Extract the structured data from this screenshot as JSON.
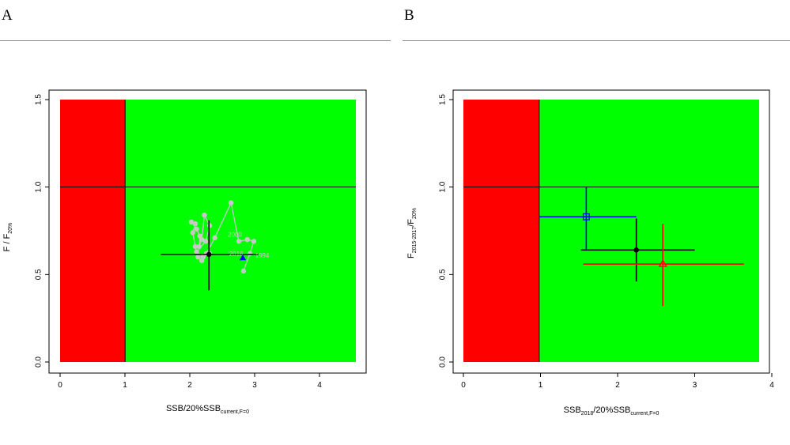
{
  "panels": {
    "a": {
      "label": "A"
    },
    "b": {
      "label": "B"
    }
  },
  "chart_data": [
    {
      "panel": "A",
      "type": "scatter",
      "xlim": [
        0,
        4.55
      ],
      "ylim": [
        0,
        1.5
      ],
      "xticks": [
        "0",
        "1",
        "2",
        "3",
        "4"
      ],
      "yticks": [
        "0.0",
        "0.5",
        "1.0",
        "1.5"
      ],
      "xlabel": {
        "main": "SSB",
        "sep": "/",
        "main2": "20%SSB",
        "sub": "current,F=0"
      },
      "ylabel": {
        "main": "F",
        "sep": "/",
        "main2": "F",
        "sub": "20%"
      },
      "zones": [
        {
          "x0": 0,
          "x1": 1,
          "color": "#ff0000"
        },
        {
          "x0": 1,
          "x1": 4.55,
          "color": "#00ff00"
        }
      ],
      "reference_lines": {
        "x": 1.0,
        "y": 1.0
      },
      "trajectory": {
        "color": "#c8c8c8",
        "points": [
          [
            2.82,
            0.52
          ],
          [
            2.92,
            0.62
          ],
          [
            2.98,
            0.69
          ],
          [
            2.88,
            0.7
          ],
          [
            2.75,
            0.69
          ],
          [
            2.63,
            0.91
          ],
          [
            2.38,
            0.71
          ],
          [
            2.25,
            0.62
          ],
          [
            2.18,
            0.58
          ],
          [
            2.12,
            0.6
          ],
          [
            2.08,
            0.66
          ],
          [
            2.04,
            0.74
          ],
          [
            2.08,
            0.79
          ],
          [
            2.02,
            0.8
          ],
          [
            2.1,
            0.76
          ],
          [
            2.15,
            0.72
          ],
          [
            2.14,
            0.66
          ],
          [
            2.18,
            0.7
          ],
          [
            2.22,
            0.84
          ],
          [
            2.3,
            0.78
          ],
          [
            2.24,
            0.69
          ],
          [
            2.1,
            0.63
          ],
          [
            2.2,
            0.6
          ],
          [
            2.3,
            0.62
          ]
        ],
        "year_labels": [
          {
            "text": "2000",
            "x": 2.58,
            "y": 0.725
          },
          {
            "text": "2018",
            "x": 2.6,
            "y": 0.615
          },
          {
            "text": "1994",
            "x": 3.0,
            "y": 0.605
          }
        ]
      },
      "current": {
        "x": 2.29,
        "y": 0.615,
        "x_ci": [
          1.55,
          3.05
        ],
        "y_ci": [
          0.41,
          0.81
        ],
        "color": "#000000"
      },
      "start_marker": {
        "x": 2.81,
        "y": 0.595,
        "shape": "triangle",
        "color": "#0000ff"
      }
    },
    {
      "panel": "B",
      "type": "scatter",
      "xlim": [
        0,
        3.9
      ],
      "ylim": [
        0,
        1.5
      ],
      "xticks": [
        "0",
        "1",
        "2",
        "3",
        "4"
      ],
      "yticks": [
        "0.0",
        "0.5",
        "1.0",
        "1.5"
      ],
      "xlabel": {
        "main": "SSB",
        "sub1": "2018",
        "sep": "/",
        "main2": "20%SSB",
        "sub": "current,F=0"
      },
      "ylabel": {
        "main": "F",
        "sub1": "2015-2017",
        "sep": "/",
        "main2": "F",
        "sub": "20%"
      },
      "zones": [
        {
          "x0": 0,
          "x1": 1,
          "color": "#ff0000"
        },
        {
          "x0": 1,
          "x1": 3.9,
          "color": "#00ff00"
        }
      ],
      "reference_lines": {
        "x": 1.0,
        "y": 1.0
      },
      "series": [
        {
          "name": "black",
          "color": "#000000",
          "marker": "filled-circle",
          "x": 2.28,
          "y": 0.64,
          "x_ci": [
            1.55,
            3.05
          ],
          "y_ci": [
            0.46,
            0.82
          ]
        },
        {
          "name": "blue",
          "color": "#0000ff",
          "marker": "open-square",
          "x": 1.62,
          "y": 0.83,
          "x_ci": [
            1.0,
            2.28
          ],
          "y_ci": [
            0.64,
            1.0
          ]
        },
        {
          "name": "red",
          "color": "#ff0000",
          "marker": "open-triangle",
          "x": 2.63,
          "y": 0.56,
          "x_ci": [
            1.58,
            3.7
          ],
          "y_ci": [
            0.32,
            0.79
          ]
        }
      ]
    }
  ]
}
